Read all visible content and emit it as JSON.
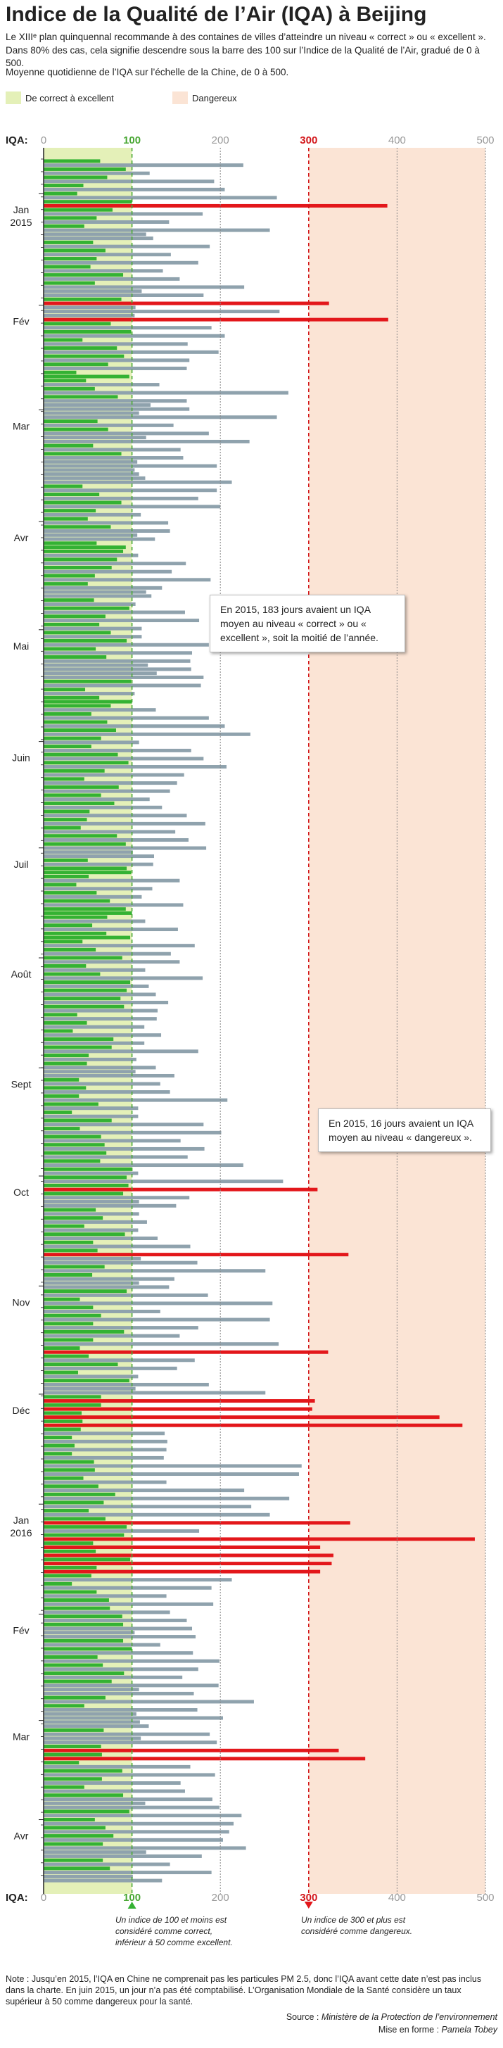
{
  "header": {
    "title": "Indice de la Qualité de l’Air (IQA) à Beijing",
    "intro_line1": "Le XIIIᵉ plan quinquennal recommande à des containes de villes d’atteindre un niveau « correct » ou « excellent ».",
    "intro_line2": "Dans 80% des cas, cela signifie descendre sous la barre des 100 sur l’Indice de la Qualité de l’Air, gradué de 0 à 500.",
    "subtitle": "Moyenne quotidienne de l’IQA sur l’échelle de la Chine, de 0 à 500."
  },
  "legend": {
    "good_label": "De correct à excellent",
    "danger_label": "Dangereux"
  },
  "colors": {
    "good_band": "#e4f0b8",
    "danger_band": "#fbe4d5",
    "good_bar": "#34b233",
    "neutral_bar": "#8fa2ad",
    "danger_bar": "#e3171b",
    "good_axis": "#4aa835",
    "neutral_axis": "#888888",
    "danger_axis": "#d3161a"
  },
  "chart_data": {
    "type": "bar",
    "orientation": "horizontal",
    "axis_label": "IQA:",
    "xlim": [
      0,
      500
    ],
    "ticks": [
      0,
      100,
      200,
      300,
      400,
      500
    ],
    "tick_labels": [
      "0",
      "100",
      "200",
      "300",
      "400",
      "500"
    ],
    "thresholds": {
      "good": 100,
      "dangerous": 300
    },
    "month_labels": [
      {
        "label": "Jan 2015",
        "day_index": 30
      },
      {
        "label": "Fév",
        "day_index": 92
      },
      {
        "label": "Mar",
        "day_index": 150
      },
      {
        "label": "Avr",
        "day_index": 212
      },
      {
        "label": "Mai",
        "day_index": 272
      },
      {
        "label": "Juin",
        "day_index": 334
      },
      {
        "label": "Juil",
        "day_index": 393
      },
      {
        "label": "Août",
        "day_index": 454
      },
      {
        "label": "Sept",
        "day_index": 515
      },
      {
        "label": "Oct",
        "day_index": 575
      },
      {
        "label": "Nov",
        "day_index": 636
      },
      {
        "label": "Déc",
        "day_index": 696
      },
      {
        "label": "Jan 2016",
        "day_index": 757
      },
      {
        "label": "Fév",
        "day_index": 818
      },
      {
        "label": "Mar",
        "day_index": 877
      },
      {
        "label": "Avr",
        "day_index": 932
      }
    ],
    "total_days": 956,
    "values": [
      64,
      226,
      93,
      120,
      72,
      193,
      45,
      205,
      38,
      264,
      100,
      389,
      78,
      180,
      60,
      142,
      46,
      256,
      116,
      124,
      56,
      188,
      70,
      144,
      60,
      175,
      53,
      135,
      90,
      154,
      58,
      227,
      111,
      181,
      88,
      323,
      104,
      267,
      103,
      390,
      76,
      190,
      99,
      205,
      44,
      163,
      83,
      198,
      91,
      165,
      73,
      162,
      37,
      97,
      48,
      131,
      58,
      277,
      84,
      162,
      121,
      165,
      108,
      264,
      61,
      147,
      73,
      187,
      116,
      233,
      56,
      155,
      88,
      158,
      106,
      196,
      103,
      108,
      115,
      213,
      44,
      196,
      63,
      175,
      88,
      200,
      59,
      110,
      50,
      141,
      76,
      143,
      106,
      126,
      60,
      93,
      90,
      107,
      83,
      161,
      77,
      145,
      58,
      189,
      50,
      134,
      116,
      122,
      57,
      104,
      97,
      160,
      70,
      176,
      63,
      111,
      76,
      111,
      94,
      187,
      59,
      168,
      71,
      166,
      118,
      167,
      128,
      181,
      99,
      178,
      47,
      103,
      63,
      100,
      76,
      127,
      54,
      187,
      72,
      205,
      82,
      234,
      65,
      108,
      54,
      167,
      84,
      181,
      96,
      207,
      69,
      159,
      46,
      151,
      85,
      143,
      65,
      120,
      80,
      134,
      52,
      162,
      49,
      183,
      42,
      149,
      83,
      164,
      93,
      184,
      101,
      125,
      50,
      124,
      94,
      99,
      51,
      154,
      37,
      123,
      60,
      111,
      75,
      158,
      93,
      100,
      72,
      115,
      55,
      152,
      71,
      98,
      44,
      171,
      59,
      144,
      89,
      154,
      48,
      115,
      64,
      180,
      98,
      119,
      94,
      127,
      87,
      141,
      91,
      129,
      38,
      128,
      49,
      114,
      33,
      133,
      79,
      114,
      77,
      175,
      51,
      105,
      49,
      127,
      104,
      148,
      40,
      132,
      48,
      143,
      40,
      208,
      62,
      107,
      32,
      107,
      77,
      181,
      41,
      201,
      65,
      155,
      69,
      182,
      71,
      163,
      64,
      226,
      100,
      107,
      94,
      271,
      96,
      310,
      90,
      165,
      108,
      150,
      59,
      108,
      67,
      117,
      46,
      107,
      92,
      129,
      56,
      166,
      61,
      345,
      110,
      174,
      69,
      251,
      55,
      148,
      108,
      142,
      94,
      186,
      41,
      259,
      56,
      132,
      65,
      256,
      56,
      175,
      91,
      154,
      56,
      266,
      41,
      322,
      51,
      171,
      84,
      151,
      39,
      107,
      97,
      187,
      104,
      251,
      65,
      307,
      65,
      304,
      43,
      448,
      44,
      474,
      42,
      137,
      32,
      140,
      35,
      139,
      32,
      136,
      57,
      292,
      58,
      289,
      45,
      139,
      62,
      227,
      81,
      278,
      68,
      235,
      51,
      256,
      70,
      347,
      94,
      176,
      91,
      488,
      56,
      313,
      59,
      328,
      98,
      326,
      60,
      313,
      54,
      213,
      32,
      190,
      60,
      139,
      74,
      192,
      75,
      143,
      89,
      162,
      90,
      168,
      103,
      172,
      90,
      132,
      100,
      169,
      61,
      199,
      67,
      175,
      91,
      157,
      77,
      198,
      108,
      170,
      70,
      238,
      46,
      174,
      105,
      203,
      109,
      119,
      68,
      188,
      110,
      196,
      65,
      334,
      66,
      364,
      40,
      166,
      89,
      194,
      66,
      155,
      46,
      160,
      90,
      191,
      115,
      199,
      97,
      224,
      58,
      215,
      70,
      210,
      79,
      203,
      67,
      229,
      116,
      179,
      67,
      143,
      75,
      190,
      101,
      134
    ],
    "annotations": [
      {
        "text": "En 2015, 183 jours avaient un IQA moyen au niveau « correct » ou « excellent », soit la moitié de l’année."
      },
      {
        "text": "En 2015, 16 jours avaient un IQA moyen au niveau « dangereux »."
      }
    ]
  },
  "markers": {
    "good_note": "Un indice de 100 et moins est considéré comme correct, inférieur à 50 comme excellent.",
    "danger_note": "Un indice de 300 et plus est considéré comme dangereux."
  },
  "footer": {
    "note": "Note : Jusqu’en 2015, l’IQA en Chine ne comprenait pas les particules PM 2.5, donc l’IQA avant cette date n’est pas inclus dans la charte. En juin 2015, un jour n’a pas été comptabilisé. L’Organisation Mondiale de la Santé considère un taux supérieur à 50 comme dangereux pour la santé.",
    "source_label": "Source :",
    "source": "Ministère de la Protection de l’environnement",
    "credit_label": "Mise en forme :",
    "credit": "Pamela Tobey"
  }
}
